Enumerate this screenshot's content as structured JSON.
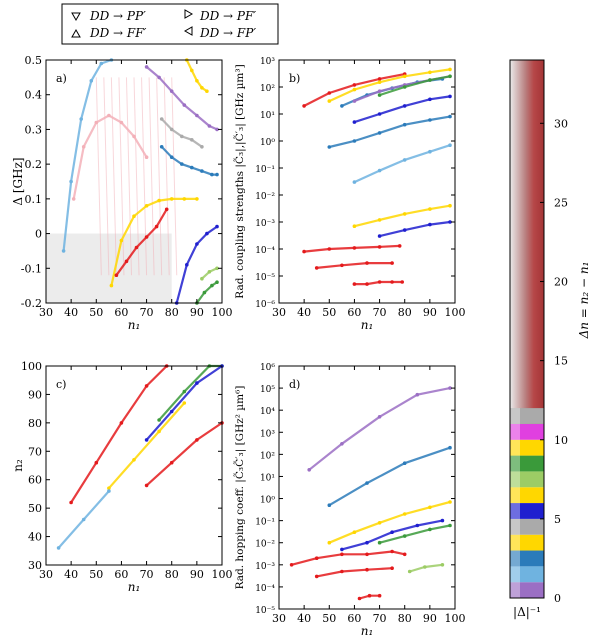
{
  "legend": [
    {
      "marker": "down",
      "label": "DD → PP′"
    },
    {
      "marker": "right",
      "label": "DD → PF′"
    },
    {
      "marker": "up",
      "label": "DD → FF′"
    },
    {
      "marker": "left",
      "label": "DD → FP′"
    }
  ],
  "colors": {
    "red": "#e41a1c",
    "gold": "#ffd700",
    "blue": "#1f1fcf",
    "lightblue": "#6fb3e0",
    "steelblue": "#2b7bba",
    "green": "#3a9a3a",
    "lightgreen": "#9ccc65",
    "purple": "#9b6fc4",
    "pink": "#f3b0b8",
    "gray": "#aaaaaa"
  },
  "chart_data": [
    {
      "type": "scatter",
      "panel": "a)",
      "xlabel": "n₁",
      "ylabel": "Δ [GHz]",
      "xlim": [
        30,
        100
      ],
      "ylim": [
        -0.2,
        0.5
      ],
      "xticks": [
        30,
        40,
        50,
        60,
        70,
        80,
        90,
        100
      ],
      "yticks": [
        -0.2,
        -0.1,
        0.0,
        0.1,
        0.2,
        0.3,
        0.4,
        0.5
      ],
      "shaded_region": "Δ < 0, n₁ < 80",
      "series": [
        {
          "color": "lightblue",
          "x": [
            37,
            40,
            44,
            48,
            52,
            56
          ],
          "y": [
            -0.05,
            0.15,
            0.33,
            0.44,
            0.49,
            0.5
          ]
        },
        {
          "color": "pink",
          "x": [
            41,
            45,
            50,
            55,
            60,
            65,
            70
          ],
          "y": [
            0.1,
            0.25,
            0.32,
            0.34,
            0.32,
            0.28,
            0.22
          ]
        },
        {
          "color": "gold",
          "x": [
            56,
            60,
            65,
            70,
            75,
            80,
            85,
            90
          ],
          "y": [
            -0.15,
            -0.02,
            0.05,
            0.08,
            0.095,
            0.1,
            0.1,
            0.1
          ]
        },
        {
          "color": "red",
          "x": [
            58,
            62,
            66,
            70,
            74,
            78
          ],
          "y": [
            -0.12,
            -0.08,
            -0.04,
            -0.01,
            0.02,
            0.07
          ]
        },
        {
          "color": "blue",
          "x": [
            82,
            86,
            90,
            94,
            98
          ],
          "y": [
            -0.2,
            -0.09,
            -0.03,
            0.0,
            0.02
          ]
        },
        {
          "color": "purple",
          "x": [
            70,
            75,
            80,
            85,
            90,
            95,
            98
          ],
          "y": [
            0.48,
            0.45,
            0.41,
            0.37,
            0.34,
            0.31,
            0.3
          ]
        },
        {
          "color": "steelblue",
          "x": [
            76,
            80,
            84,
            88,
            92,
            96,
            98
          ],
          "y": [
            0.25,
            0.22,
            0.2,
            0.19,
            0.18,
            0.17,
            0.17
          ]
        },
        {
          "color": "gold",
          "x": [
            86,
            88,
            90,
            92,
            94
          ],
          "y": [
            0.5,
            0.47,
            0.44,
            0.42,
            0.41
          ]
        },
        {
          "color": "gray",
          "x": [
            76,
            80,
            84,
            88,
            92
          ],
          "y": [
            0.33,
            0.3,
            0.28,
            0.27,
            0.25
          ]
        },
        {
          "color": "green",
          "x": [
            90,
            93,
            96,
            98
          ],
          "y": [
            -0.2,
            -0.17,
            -0.15,
            -0.14
          ]
        },
        {
          "color": "lightgreen",
          "x": [
            92,
            95,
            98
          ],
          "y": [
            -0.13,
            -0.11,
            -0.1
          ]
        }
      ]
    },
    {
      "type": "scatter",
      "panel": "b)",
      "xlabel": "n₁",
      "ylabel": "Rad. coupling strengths |C̃₃|,|C̃′₃| [GHz µm³]",
      "xlim": [
        30,
        100
      ],
      "ylim": [
        1e-06,
        1000
      ],
      "yscale": "log",
      "xticks": [
        30,
        40,
        50,
        60,
        70,
        80,
        90,
        100
      ],
      "yticks": [
        1e-06,
        1e-05,
        0.0001,
        0.001,
        0.01,
        0.1,
        1,
        10,
        100,
        1000
      ],
      "ytick_labels": [
        "10⁻⁶",
        "10⁻⁵",
        "10⁻⁴",
        "10⁻³",
        "10⁻²",
        "10⁻¹",
        "10⁰",
        "10¹",
        "10²",
        "10³"
      ],
      "series": [
        {
          "color": "red",
          "x": [
            40,
            50,
            60,
            70,
            80
          ],
          "y": [
            20,
            60,
            120,
            200,
            300
          ]
        },
        {
          "color": "gold",
          "x": [
            50,
            60,
            70,
            80,
            90,
            98
          ],
          "y": [
            30,
            80,
            150,
            250,
            350,
            450
          ]
        },
        {
          "color": "steelblue",
          "x": [
            55,
            65,
            75,
            85,
            95
          ],
          "y": [
            20,
            50,
            90,
            150,
            200
          ]
        },
        {
          "color": "purple",
          "x": [
            60,
            70,
            80,
            90,
            98
          ],
          "y": [
            30,
            70,
            120,
            180,
            250
          ]
        },
        {
          "color": "green",
          "x": [
            70,
            80,
            90,
            98
          ],
          "y": [
            50,
            100,
            180,
            250
          ]
        },
        {
          "color": "blue",
          "x": [
            60,
            70,
            80,
            90,
            98
          ],
          "y": [
            5,
            10,
            20,
            35,
            45
          ]
        },
        {
          "color": "steelblue",
          "x": [
            50,
            60,
            70,
            80,
            90,
            98
          ],
          "y": [
            0.6,
            1,
            2,
            4,
            6,
            8
          ]
        },
        {
          "color": "lightblue",
          "x": [
            60,
            70,
            80,
            90,
            98
          ],
          "y": [
            0.03,
            0.08,
            0.2,
            0.4,
            0.7
          ]
        },
        {
          "color": "gold",
          "x": [
            60,
            70,
            80,
            90,
            98
          ],
          "y": [
            0.0007,
            0.0012,
            0.002,
            0.003,
            0.004
          ]
        },
        {
          "color": "blue",
          "x": [
            70,
            80,
            90,
            98
          ],
          "y": [
            0.0003,
            0.0005,
            0.0008,
            0.001
          ]
        },
        {
          "color": "red",
          "x": [
            40,
            50,
            60,
            70,
            78
          ],
          "y": [
            8e-05,
            0.0001,
            0.00011,
            0.00012,
            0.00013
          ]
        },
        {
          "color": "red",
          "x": [
            45,
            55,
            65,
            75
          ],
          "y": [
            2e-05,
            2.5e-05,
            3e-05,
            3e-05
          ]
        },
        {
          "color": "red",
          "x": [
            60,
            65,
            70,
            75,
            79
          ],
          "y": [
            5e-06,
            5e-06,
            6e-06,
            6e-06,
            6e-06
          ]
        }
      ]
    },
    {
      "type": "scatter",
      "panel": "c)",
      "xlabel": "n₁",
      "ylabel": "n₂",
      "xlim": [
        30,
        100
      ],
      "ylim": [
        30,
        100
      ],
      "xticks": [
        30,
        40,
        50,
        60,
        70,
        80,
        90,
        100
      ],
      "yticks": [
        30,
        40,
        50,
        60,
        70,
        80,
        90,
        100
      ],
      "series": [
        {
          "color": "red",
          "x": [
            40,
            50,
            60,
            70,
            78
          ],
          "y": [
            52,
            66,
            80,
            93,
            100
          ]
        },
        {
          "color": "gold",
          "x": [
            55,
            65,
            75,
            85
          ],
          "y": [
            57,
            67,
            77,
            87
          ]
        },
        {
          "color": "green",
          "x": [
            75,
            85,
            95,
            100
          ],
          "y": [
            81,
            91,
            100,
            100
          ]
        },
        {
          "color": "blue",
          "x": [
            70,
            80,
            90,
            100
          ],
          "y": [
            74,
            84,
            94,
            100
          ]
        },
        {
          "color": "red",
          "x": [
            70,
            80,
            90,
            100
          ],
          "y": [
            58,
            66,
            74,
            80
          ]
        },
        {
          "color": "lightblue",
          "x": [
            35,
            45,
            55
          ],
          "y": [
            36,
            46,
            56
          ]
        }
      ]
    },
    {
      "type": "scatter",
      "panel": "d)",
      "xlabel": "n₁",
      "ylabel": "Rad. hopping coeff. |C̃₃C̃′₃| [GHz² µm⁶]",
      "xlim": [
        30,
        100
      ],
      "ylim": [
        1e-05,
        1000000.0
      ],
      "yscale": "log",
      "xticks": [
        30,
        40,
        50,
        60,
        70,
        80,
        90,
        100
      ],
      "yticks": [
        1e-05,
        0.0001,
        0.001,
        0.01,
        0.1,
        1,
        10,
        100,
        1000,
        10000.0,
        100000.0,
        1000000.0
      ],
      "ytick_labels": [
        "10⁻⁵",
        "10⁻⁴",
        "10⁻³",
        "10⁻²",
        "10⁻¹",
        "10⁰",
        "10¹",
        "10²",
        "10³",
        "10⁴",
        "10⁵",
        "10⁶"
      ],
      "series": [
        {
          "color": "purple",
          "x": [
            42,
            55,
            70,
            85,
            98
          ],
          "y": [
            20,
            300,
            5000,
            50000,
            100000
          ]
        },
        {
          "color": "steelblue",
          "x": [
            50,
            65,
            80,
            98
          ],
          "y": [
            0.5,
            5,
            40,
            200
          ]
        },
        {
          "color": "gold",
          "x": [
            50,
            60,
            70,
            80,
            90,
            98
          ],
          "y": [
            0.01,
            0.03,
            0.08,
            0.2,
            0.4,
            0.7
          ]
        },
        {
          "color": "blue",
          "x": [
            55,
            65,
            75,
            85,
            95
          ],
          "y": [
            0.005,
            0.01,
            0.03,
            0.06,
            0.1
          ]
        },
        {
          "color": "green",
          "x": [
            70,
            80,
            90,
            98
          ],
          "y": [
            0.01,
            0.02,
            0.04,
            0.06
          ]
        },
        {
          "color": "red",
          "x": [
            35,
            45,
            55,
            65,
            75,
            80
          ],
          "y": [
            0.001,
            0.002,
            0.003,
            0.003,
            0.004,
            0.003
          ]
        },
        {
          "color": "red",
          "x": [
            45,
            55,
            65,
            75
          ],
          "y": [
            0.0003,
            0.0005,
            0.0006,
            0.0007
          ]
        },
        {
          "color": "red",
          "x": [
            62,
            66,
            70
          ],
          "y": [
            3e-05,
            4e-05,
            4e-05
          ]
        },
        {
          "color": "lightgreen",
          "x": [
            82,
            88,
            95
          ],
          "y": [
            0.0005,
            0.0008,
            0.001
          ]
        }
      ]
    }
  ],
  "colorbar": {
    "label": "Δn = n₂ − n₁",
    "ticks": [
      0,
      5,
      10,
      15,
      20,
      25,
      30
    ],
    "bottom_label": "|Δ|⁻¹",
    "segments": [
      "purple",
      "lightblue",
      "steelblue",
      "gold",
      "gray",
      "blue",
      "gold",
      "lightgreen",
      "green",
      "gold",
      "#e040e0",
      "gray"
    ]
  }
}
